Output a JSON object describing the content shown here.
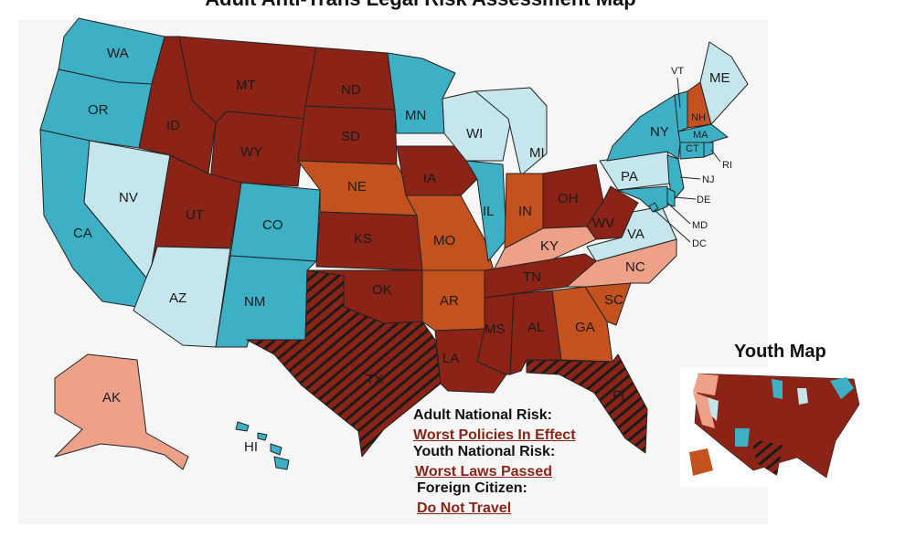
{
  "title": "Adult Anti-Trans Legal Risk Assessment Map",
  "colors": {
    "worst": "#8b2317",
    "high": "#c4521f",
    "moderate": "#eda189",
    "low": "#c6e6ed",
    "safest": "#3eb0c6",
    "stroke": "#222222"
  },
  "states": [
    {
      "abbr": "WA",
      "risk": "safest"
    },
    {
      "abbr": "OR",
      "risk": "safest"
    },
    {
      "abbr": "CA",
      "risk": "safest"
    },
    {
      "abbr": "NV",
      "risk": "low"
    },
    {
      "abbr": "ID",
      "risk": "worst"
    },
    {
      "abbr": "MT",
      "risk": "worst"
    },
    {
      "abbr": "WY",
      "risk": "worst"
    },
    {
      "abbr": "UT",
      "risk": "worst"
    },
    {
      "abbr": "AZ",
      "risk": "low"
    },
    {
      "abbr": "CO",
      "risk": "safest"
    },
    {
      "abbr": "NM",
      "risk": "safest"
    },
    {
      "abbr": "ND",
      "risk": "worst"
    },
    {
      "abbr": "SD",
      "risk": "worst"
    },
    {
      "abbr": "NE",
      "risk": "high"
    },
    {
      "abbr": "KS",
      "risk": "worst"
    },
    {
      "abbr": "OK",
      "risk": "worst"
    },
    {
      "abbr": "TX",
      "risk": "worst-hatched"
    },
    {
      "abbr": "MN",
      "risk": "safest"
    },
    {
      "abbr": "IA",
      "risk": "worst"
    },
    {
      "abbr": "MO",
      "risk": "high"
    },
    {
      "abbr": "AR",
      "risk": "high"
    },
    {
      "abbr": "LA",
      "risk": "worst"
    },
    {
      "abbr": "WI",
      "risk": "low"
    },
    {
      "abbr": "IL",
      "risk": "safest"
    },
    {
      "abbr": "MI",
      "risk": "low"
    },
    {
      "abbr": "IN",
      "risk": "high"
    },
    {
      "abbr": "OH",
      "risk": "worst"
    },
    {
      "abbr": "KY",
      "risk": "moderate"
    },
    {
      "abbr": "TN",
      "risk": "worst"
    },
    {
      "abbr": "MS",
      "risk": "worst"
    },
    {
      "abbr": "AL",
      "risk": "worst"
    },
    {
      "abbr": "GA",
      "risk": "high"
    },
    {
      "abbr": "FL",
      "risk": "worst-hatched"
    },
    {
      "abbr": "SC",
      "risk": "high"
    },
    {
      "abbr": "NC",
      "risk": "moderate"
    },
    {
      "abbr": "VA",
      "risk": "low"
    },
    {
      "abbr": "WV",
      "risk": "worst"
    },
    {
      "abbr": "PA",
      "risk": "low"
    },
    {
      "abbr": "NY",
      "risk": "safest"
    },
    {
      "abbr": "VT",
      "risk": "safest"
    },
    {
      "abbr": "NH",
      "risk": "high"
    },
    {
      "abbr": "ME",
      "risk": "low"
    },
    {
      "abbr": "MA",
      "risk": "safest"
    },
    {
      "abbr": "CT",
      "risk": "safest"
    },
    {
      "abbr": "RI",
      "risk": "safest"
    },
    {
      "abbr": "NJ",
      "risk": "safest"
    },
    {
      "abbr": "DE",
      "risk": "safest"
    },
    {
      "abbr": "MD",
      "risk": "safest"
    },
    {
      "abbr": "DC",
      "risk": "safest"
    },
    {
      "abbr": "AK",
      "risk": "moderate"
    },
    {
      "abbr": "HI",
      "risk": "safest"
    }
  ],
  "legend": {
    "adult_label": "Adult National Risk:",
    "adult_value": "Worst Policies In Effect",
    "youth_label": "Youth National Risk:",
    "youth_value": "Worst Laws Passed",
    "foreign_label": "Foreign Citizen:",
    "foreign_value": "Do Not Travel"
  },
  "youth_map": {
    "title": "Youth Map"
  }
}
